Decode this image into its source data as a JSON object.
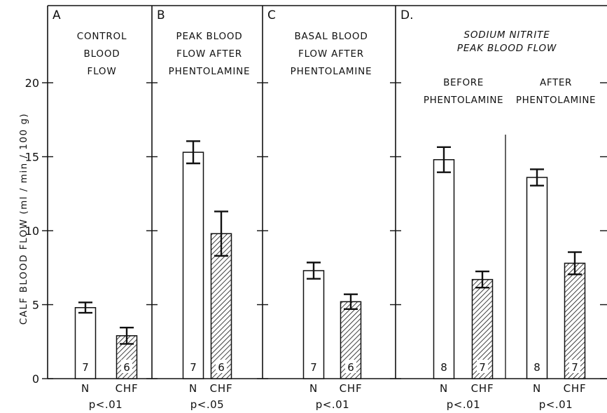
{
  "chart_data": {
    "type": "bar",
    "ylabel": "CALF BLOOD FLOW (ml / min / 100 g)",
    "ylim": [
      0,
      25
    ],
    "yticks": [
      0,
      5,
      10,
      15,
      20
    ],
    "grid": false,
    "error_bars": true,
    "panels": [
      {
        "letter": "A",
        "title": [
          "CONTROL",
          "BLOOD",
          "FLOW"
        ],
        "bars": [
          {
            "group": "N",
            "value": 4.8,
            "err": 0.35,
            "n": "7",
            "hatched": false
          },
          {
            "group": "CHF",
            "value": 2.9,
            "err": 0.55,
            "n": "6",
            "hatched": true
          }
        ],
        "pvalues": [
          "p<.01"
        ]
      },
      {
        "letter": "B",
        "title": [
          "PEAK  BLOOD",
          "FLOW  AFTER",
          "PHENTOLAMINE"
        ],
        "bars": [
          {
            "group": "N",
            "value": 15.3,
            "err": 0.75,
            "n": "7",
            "hatched": false
          },
          {
            "group": "CHF",
            "value": 9.8,
            "err": 1.5,
            "n": "6",
            "hatched": true
          }
        ],
        "pvalues": [
          "p<.05"
        ]
      },
      {
        "letter": "C",
        "title": [
          "BASAL   BLOOD",
          "FLOW   AFTER",
          "PHENTOLAMINE"
        ],
        "bars": [
          {
            "group": "N",
            "value": 7.3,
            "err": 0.55,
            "n": "7",
            "hatched": false
          },
          {
            "group": "CHF",
            "value": 5.2,
            "err": 0.5,
            "n": "6",
            "hatched": true
          }
        ],
        "pvalues": [
          "p<.01"
        ]
      },
      {
        "letter": "D.",
        "title": [
          "SODIUM  NITRITE",
          "PEAK BLOOD FLOW"
        ],
        "subtitles": [
          [
            "BEFORE",
            "PHENTOLAMINE"
          ],
          [
            "AFTER",
            "PHENTOLAMINE"
          ]
        ],
        "bars": [
          {
            "group": "N",
            "value": 14.8,
            "err": 0.85,
            "n": "8",
            "hatched": false
          },
          {
            "group": "CHF",
            "value": 6.7,
            "err": 0.55,
            "n": "7",
            "hatched": true
          },
          {
            "group": "N",
            "value": 13.6,
            "err": 0.55,
            "n": "8",
            "hatched": false
          },
          {
            "group": "CHF",
            "value": 7.8,
            "err": 0.75,
            "n": "7",
            "hatched": true
          }
        ],
        "pvalues": [
          "p<.01",
          "p<.01"
        ]
      }
    ]
  }
}
